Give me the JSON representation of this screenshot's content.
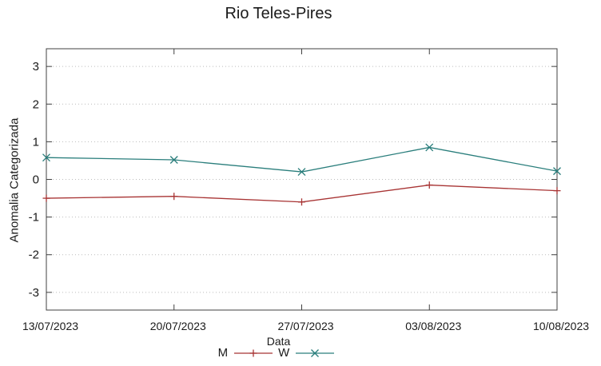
{
  "title": "Rio Teles-Pires",
  "chart_data": {
    "type": "line",
    "title": "Rio Teles-Pires",
    "xlabel": "Data",
    "ylabel": "Anomalia Categorizada",
    "categories": [
      "13/07/2023",
      "20/07/2023",
      "27/07/2023",
      "03/08/2023",
      "10/08/2023"
    ],
    "series": [
      {
        "name": "M",
        "marker": "plus",
        "color": "#a83434",
        "values": [
          -0.5,
          -0.45,
          -0.6,
          -0.15,
          -0.3
        ]
      },
      {
        "name": "W",
        "marker": "cross",
        "color": "#2a7e7c",
        "values": [
          0.58,
          0.52,
          0.2,
          0.85,
          0.22
        ]
      }
    ],
    "yticks": [
      -3,
      -2,
      -1,
      0,
      1,
      2,
      3
    ],
    "ylim": [
      -3.47,
      3.47
    ],
    "grid": "dotted-horizontal",
    "grid_color": "#bcbcbc",
    "border_color": "#404040",
    "legend_position": "bottom-center"
  }
}
